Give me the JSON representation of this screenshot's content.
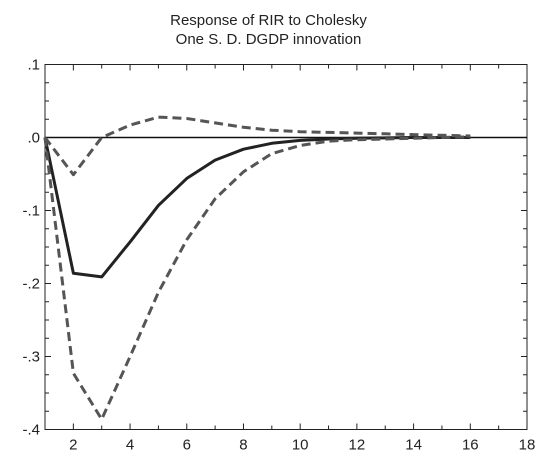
{
  "chart_data": {
    "type": "line",
    "title": "Response of RIR to Cholesky",
    "subtitle": "One S. D. DGDP innovation",
    "xlabel": "",
    "ylabel": "",
    "xlim": [
      1,
      18
    ],
    "ylim": [
      -0.4,
      0.1
    ],
    "x_ticks": [
      2,
      4,
      6,
      8,
      10,
      12,
      14,
      16,
      18
    ],
    "x_tick_labels": [
      "2",
      "4",
      "6",
      "8",
      "10",
      "12",
      "14",
      "16",
      "18"
    ],
    "y_ticks": [
      0.1,
      0.0,
      -0.1,
      -0.2,
      -0.3,
      -0.4
    ],
    "y_tick_labels": [
      ".1",
      ".0",
      "-.1",
      "-.2",
      "-.3",
      "-.4"
    ],
    "zero_line": true,
    "grid": false,
    "x": [
      1,
      2,
      3,
      4,
      5,
      6,
      7,
      8,
      9,
      10,
      11,
      12,
      13,
      14,
      15,
      16
    ],
    "series": [
      {
        "role": "response",
        "style": "solid",
        "color": "#222222",
        "values": [
          0.0,
          -0.186,
          -0.191,
          -0.143,
          -0.093,
          -0.056,
          -0.031,
          -0.016,
          -0.008,
          -0.004,
          -0.002,
          -0.001,
          -0.0005,
          0.0,
          0.0,
          0.0
        ]
      },
      {
        "role": "upper-band",
        "style": "dashed",
        "color": "#555555",
        "values": [
          0.0,
          -0.051,
          0.0,
          0.017,
          0.028,
          0.026,
          0.02,
          0.014,
          0.01,
          0.008,
          0.007,
          0.006,
          0.005,
          0.004,
          0.003,
          0.002
        ]
      },
      {
        "role": "lower-band",
        "style": "dashed",
        "color": "#555555",
        "values": [
          0.0,
          -0.323,
          -0.386,
          -0.3,
          -0.212,
          -0.14,
          -0.084,
          -0.047,
          -0.022,
          -0.011,
          -0.005,
          -0.003,
          -0.002,
          -0.001,
          0.0,
          0.001
        ]
      }
    ]
  }
}
